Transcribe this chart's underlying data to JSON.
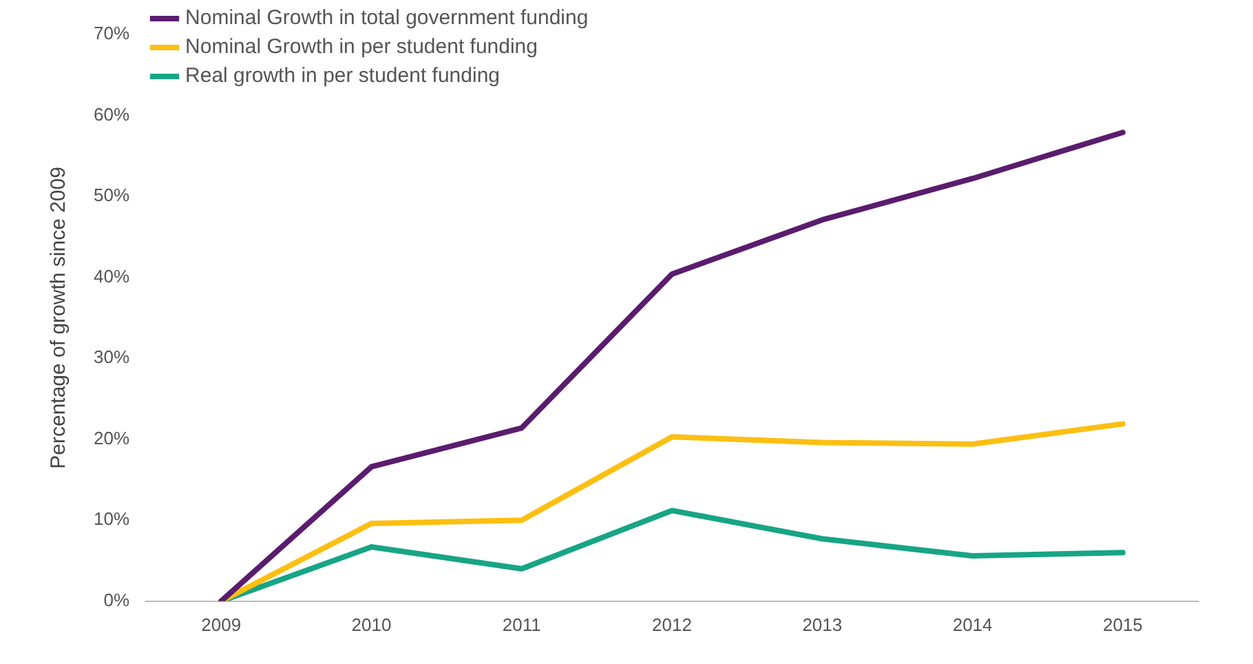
{
  "chart_data": {
    "type": "line",
    "ylabel": "Percentage of growth since 2009",
    "categories": [
      "2009",
      "2010",
      "2011",
      "2012",
      "2013",
      "2014",
      "2015"
    ],
    "series": [
      {
        "name": "Nominal Growth in total government funding",
        "color": "#5a1c6e",
        "values": [
          0,
          16.6,
          21.4,
          40.4,
          47.1,
          52.2,
          57.9
        ]
      },
      {
        "name": "Nominal Growth in per student funding",
        "color": "#fcbf12",
        "values": [
          0,
          9.6,
          10.0,
          20.3,
          19.6,
          19.4,
          21.9
        ]
      },
      {
        "name": "Real growth in per student funding",
        "color": "#17a585",
        "values": [
          0,
          6.7,
          4.0,
          11.2,
          7.7,
          5.6,
          6.0
        ]
      }
    ],
    "ylim": [
      0,
      70
    ],
    "yticks": [
      {
        "value": 0,
        "label": "0%"
      },
      {
        "value": 10,
        "label": "10%"
      },
      {
        "value": 20,
        "label": "20%"
      },
      {
        "value": 30,
        "label": "30%"
      },
      {
        "value": 40,
        "label": "40%"
      },
      {
        "value": 50,
        "label": "50%"
      },
      {
        "value": 60,
        "label": "60%"
      },
      {
        "value": 70,
        "label": "70%"
      }
    ],
    "grid": false,
    "legend": "top left",
    "marker": "none",
    "line_style": "solid"
  }
}
